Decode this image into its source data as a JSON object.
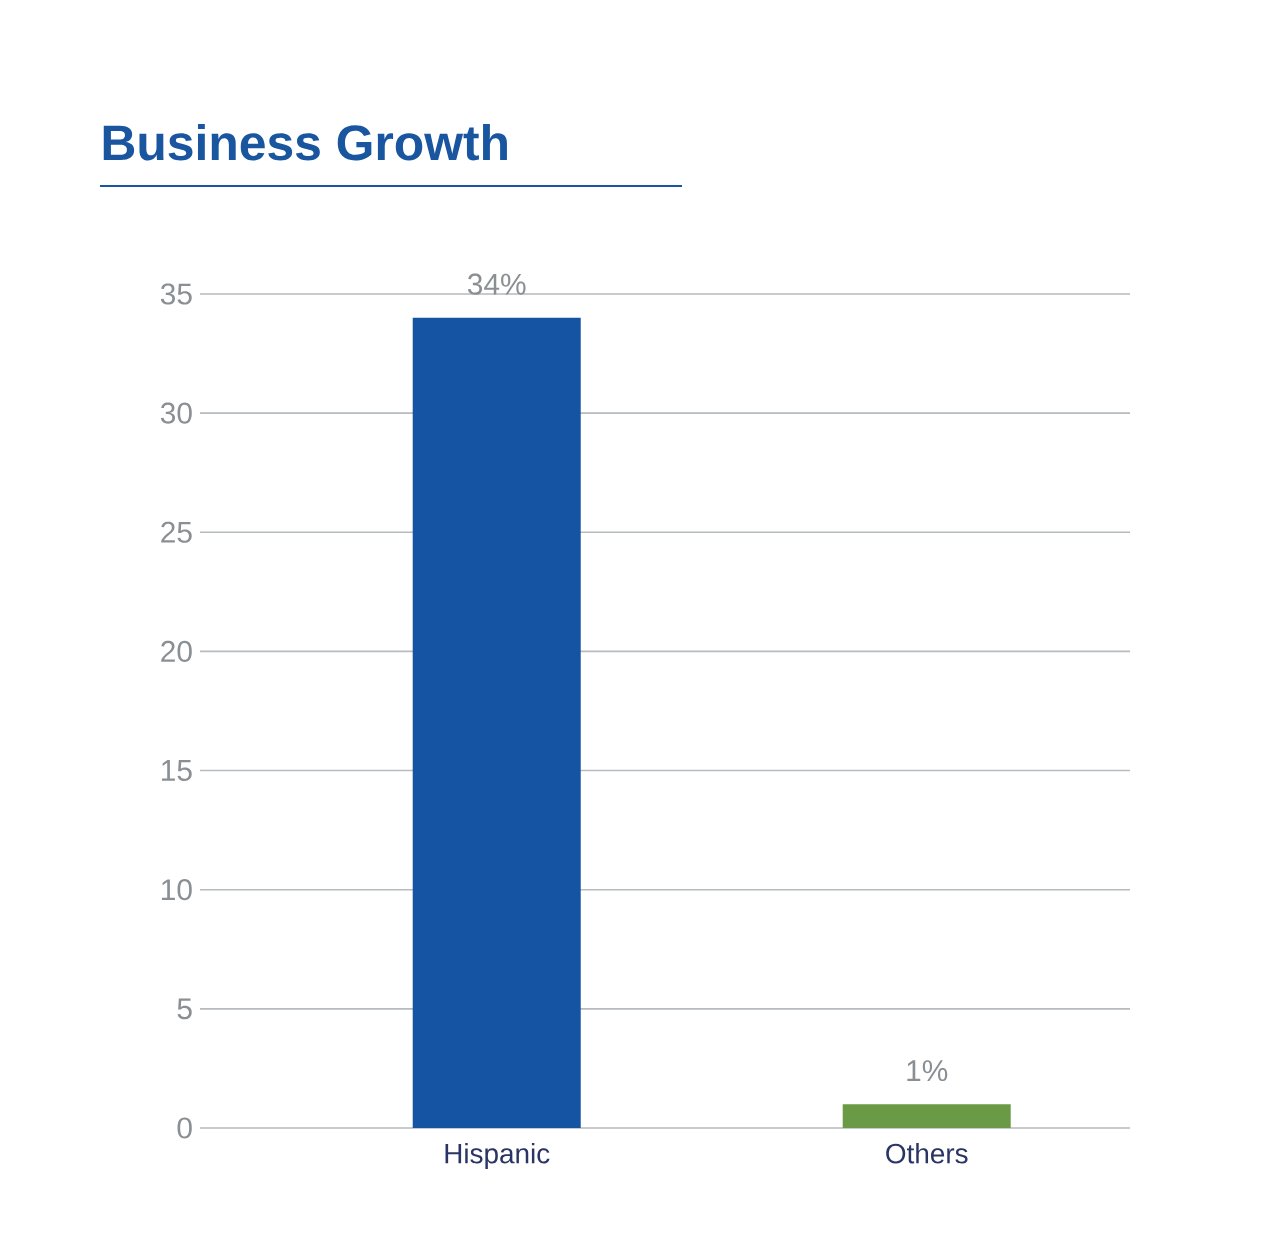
{
  "chart_data": {
    "type": "bar",
    "title": "Business Growth",
    "categories": [
      "Hispanic",
      "Others"
    ],
    "values": [
      34,
      1
    ],
    "colors": [
      "#1454a3",
      "#6a9a45"
    ],
    "value_labels": [
      "34%",
      "1%"
    ],
    "ylim": [
      0,
      35
    ],
    "yticks": [
      0,
      5,
      10,
      15,
      20,
      25,
      30,
      35
    ],
    "grid": "y"
  }
}
